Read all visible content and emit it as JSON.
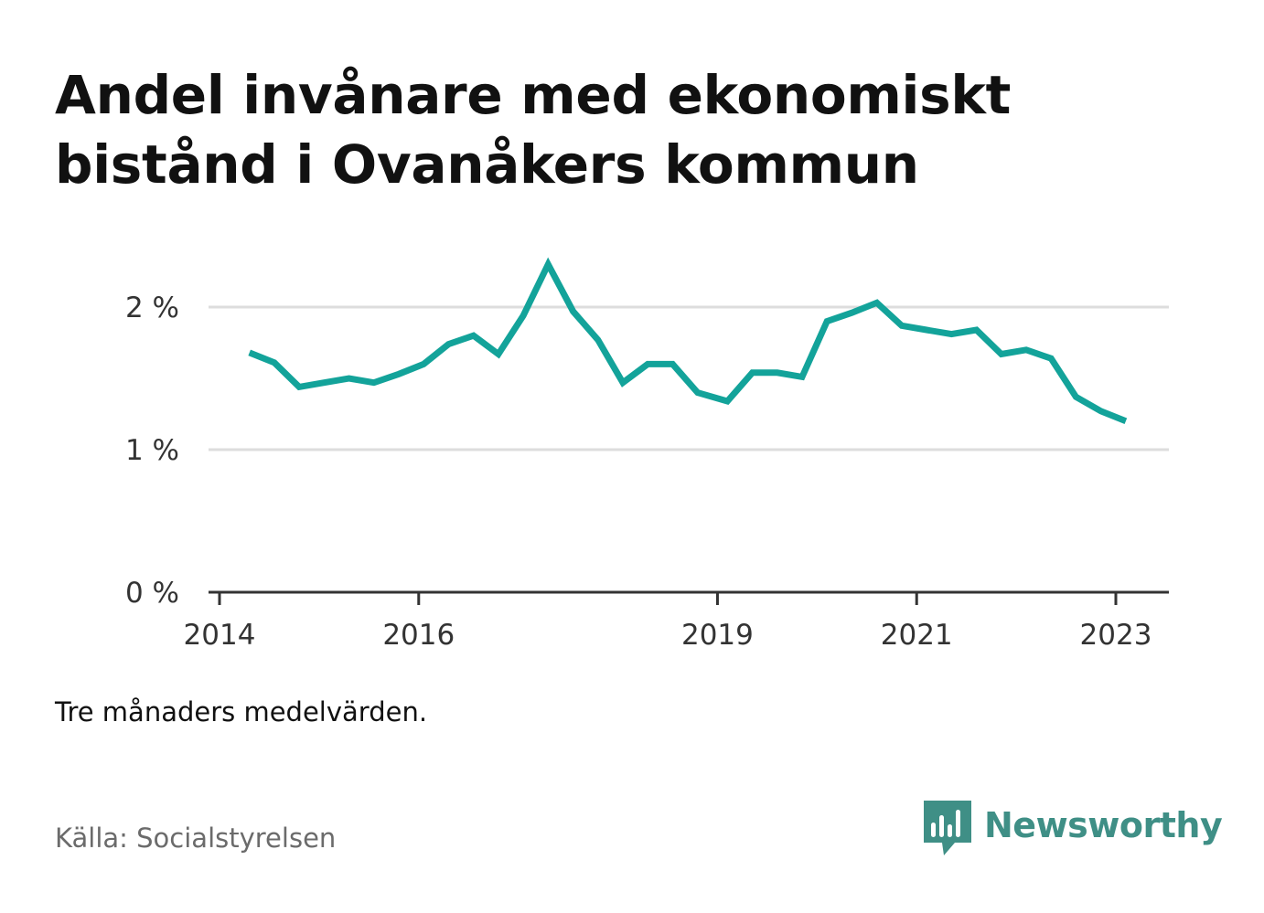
{
  "header": {
    "title": "Andel invånare med ekonomiskt bistånd i Ovanåkers kommun"
  },
  "footer": {
    "note": "Tre månaders medelvärden.",
    "source": "Källa: Socialstyrelsen",
    "brand": "Newsworthy"
  },
  "colors": {
    "line": "#13a39a",
    "grid": "#dddddd",
    "axis": "#333333",
    "brand": "#3f8f86"
  },
  "icons": {
    "brand_logo": "bar-chart-speech-bubble-icon"
  },
  "chart_data": {
    "type": "line",
    "title": "Andel invånare med ekonomiskt bistånd i Ovanåkers kommun",
    "xlabel": "",
    "ylabel": "",
    "ylim": [
      0,
      2.4
    ],
    "y_ticks": [
      {
        "value": 0,
        "label": "0 %"
      },
      {
        "value": 1,
        "label": "1 %"
      },
      {
        "value": 2,
        "label": "2 %"
      }
    ],
    "x_ticks": [
      {
        "value": 2014,
        "label": "2014"
      },
      {
        "value": 2016,
        "label": "2016"
      },
      {
        "value": 2019,
        "label": "2019"
      },
      {
        "value": 2021,
        "label": "2021"
      },
      {
        "value": 2023,
        "label": "2023"
      }
    ],
    "xlim": [
      2013.99,
      2023.5
    ],
    "grid": true,
    "legend": "none",
    "series": [
      {
        "values": [
          {
            "x": 2014.3,
            "y": 1.68
          },
          {
            "x": 2014.55,
            "y": 1.61
          },
          {
            "x": 2014.8,
            "y": 1.44
          },
          {
            "x": 2015.05,
            "y": 1.47
          },
          {
            "x": 2015.3,
            "y": 1.5
          },
          {
            "x": 2015.55,
            "y": 1.47
          },
          {
            "x": 2015.8,
            "y": 1.53
          },
          {
            "x": 2016.05,
            "y": 1.6
          },
          {
            "x": 2016.3,
            "y": 1.74
          },
          {
            "x": 2016.55,
            "y": 1.8
          },
          {
            "x": 2016.8,
            "y": 1.67
          },
          {
            "x": 2017.05,
            "y": 1.94
          },
          {
            "x": 2017.3,
            "y": 2.3
          },
          {
            "x": 2017.55,
            "y": 1.97
          },
          {
            "x": 2017.8,
            "y": 1.77
          },
          {
            "x": 2018.05,
            "y": 1.47
          },
          {
            "x": 2018.3,
            "y": 1.6
          },
          {
            "x": 2018.55,
            "y": 1.6
          },
          {
            "x": 2018.8,
            "y": 1.4
          },
          {
            "x": 2019.1,
            "y": 1.34
          },
          {
            "x": 2019.35,
            "y": 1.54
          },
          {
            "x": 2019.6,
            "y": 1.54
          },
          {
            "x": 2019.85,
            "y": 1.51
          },
          {
            "x": 2020.1,
            "y": 1.9
          },
          {
            "x": 2020.35,
            "y": 1.96
          },
          {
            "x": 2020.6,
            "y": 2.03
          },
          {
            "x": 2020.85,
            "y": 1.87
          },
          {
            "x": 2021.1,
            "y": 1.84
          },
          {
            "x": 2021.35,
            "y": 1.81
          },
          {
            "x": 2021.6,
            "y": 1.84
          },
          {
            "x": 2021.85,
            "y": 1.67
          },
          {
            "x": 2022.1,
            "y": 1.7
          },
          {
            "x": 2022.35,
            "y": 1.64
          },
          {
            "x": 2022.6,
            "y": 1.37
          },
          {
            "x": 2022.85,
            "y": 1.27
          },
          {
            "x": 2023.1,
            "y": 1.2
          }
        ]
      }
    ]
  }
}
